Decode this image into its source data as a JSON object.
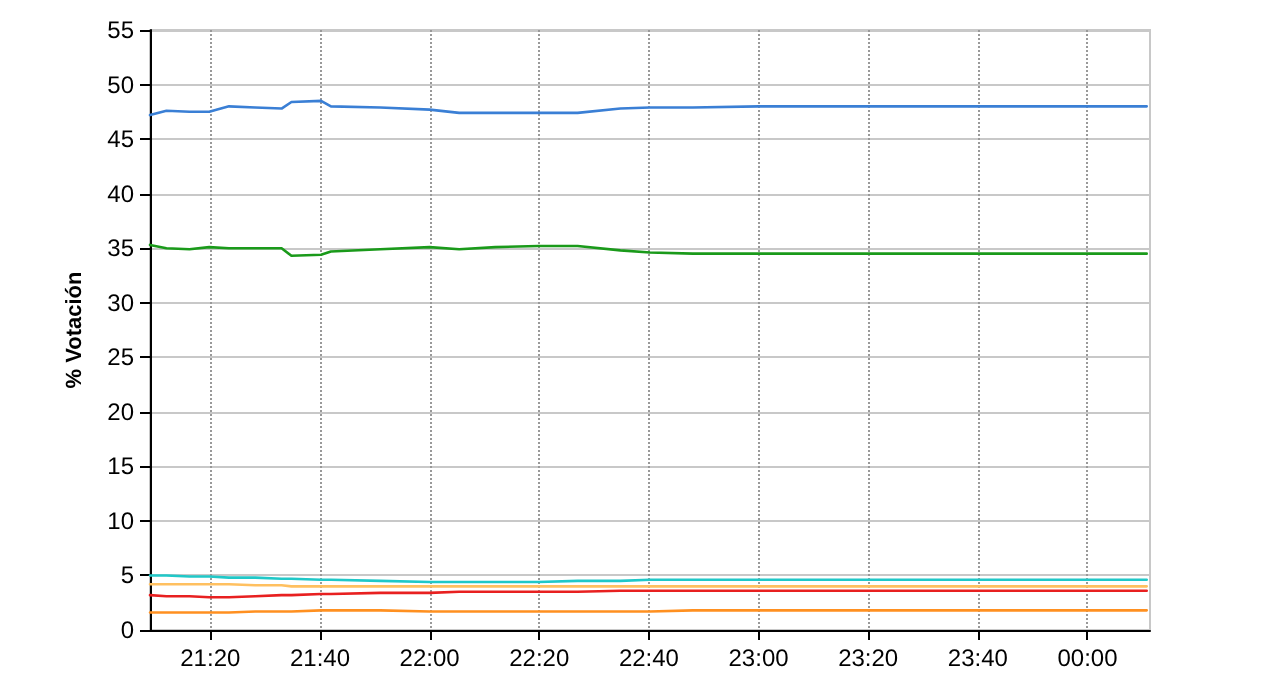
{
  "chart_data": {
    "type": "line",
    "ylabel": "% Votación",
    "x": [
      21.15,
      21.2,
      21.27,
      21.33,
      21.39,
      21.47,
      21.55,
      21.58,
      21.67,
      21.7,
      21.85,
      22.0,
      22.09,
      22.2,
      22.33,
      22.45,
      22.58,
      22.67,
      22.8,
      23.0,
      23.33,
      23.67,
      24.0,
      24.18
    ],
    "series": [
      {
        "color": "#3a7fd5",
        "values": [
          47.2,
          47.6,
          47.5,
          47.5,
          48.0,
          47.9,
          47.8,
          48.4,
          48.5,
          48.0,
          47.9,
          47.7,
          47.4,
          47.4,
          47.4,
          47.4,
          47.8,
          47.9,
          47.9,
          48.0,
          48.0,
          48.0,
          48.0,
          48.0
        ]
      },
      {
        "color": "#1a9a1a",
        "values": [
          35.3,
          35.0,
          34.9,
          35.1,
          35.0,
          35.0,
          35.0,
          34.3,
          34.4,
          34.7,
          34.9,
          35.1,
          34.9,
          35.1,
          35.2,
          35.2,
          34.8,
          34.6,
          34.5,
          34.5,
          34.5,
          34.5,
          34.5,
          34.5
        ]
      },
      {
        "color": "#20c8c8",
        "values": [
          5.0,
          5.0,
          4.9,
          4.9,
          4.8,
          4.8,
          4.7,
          4.7,
          4.6,
          4.6,
          4.5,
          4.4,
          4.4,
          4.4,
          4.4,
          4.5,
          4.5,
          4.6,
          4.6,
          4.6,
          4.6,
          4.6,
          4.6,
          4.6
        ]
      },
      {
        "color": "#ffc060",
        "values": [
          4.2,
          4.2,
          4.2,
          4.2,
          4.2,
          4.1,
          4.1,
          4.0,
          4.0,
          4.0,
          4.0,
          4.0,
          4.0,
          4.0,
          4.0,
          4.0,
          4.0,
          4.0,
          4.0,
          4.0,
          4.0,
          4.0,
          4.0,
          4.0
        ]
      },
      {
        "color": "#e82020",
        "values": [
          3.2,
          3.1,
          3.1,
          3.0,
          3.0,
          3.1,
          3.2,
          3.2,
          3.3,
          3.3,
          3.4,
          3.4,
          3.5,
          3.5,
          3.5,
          3.5,
          3.6,
          3.6,
          3.6,
          3.6,
          3.6,
          3.6,
          3.6,
          3.6
        ]
      },
      {
        "color": "#ff9020",
        "values": [
          1.6,
          1.6,
          1.6,
          1.6,
          1.6,
          1.7,
          1.7,
          1.7,
          1.8,
          1.8,
          1.8,
          1.7,
          1.7,
          1.7,
          1.7,
          1.7,
          1.7,
          1.7,
          1.8,
          1.8,
          1.8,
          1.8,
          1.8,
          1.8
        ]
      }
    ],
    "xlim": [
      21.15,
      24.19
    ],
    "xticks": [
      {
        "value": 21.3333,
        "label": "21:20"
      },
      {
        "value": 21.6667,
        "label": "21:40"
      },
      {
        "value": 22,
        "label": "22:00"
      },
      {
        "value": 22.3333,
        "label": "22:20"
      },
      {
        "value": 22.6667,
        "label": "22:40"
      },
      {
        "value": 23,
        "label": "23:00"
      },
      {
        "value": 23.3333,
        "label": "23:20"
      },
      {
        "value": 23.6667,
        "label": "23:40"
      },
      {
        "value": 24,
        "label": "00:00"
      }
    ],
    "ylim": [
      0,
      55
    ],
    "yticks": [
      0,
      5,
      10,
      15,
      20,
      25,
      30,
      35,
      40,
      45,
      50,
      55
    ],
    "grid": true,
    "marker": "none",
    "line_style": "solid"
  }
}
